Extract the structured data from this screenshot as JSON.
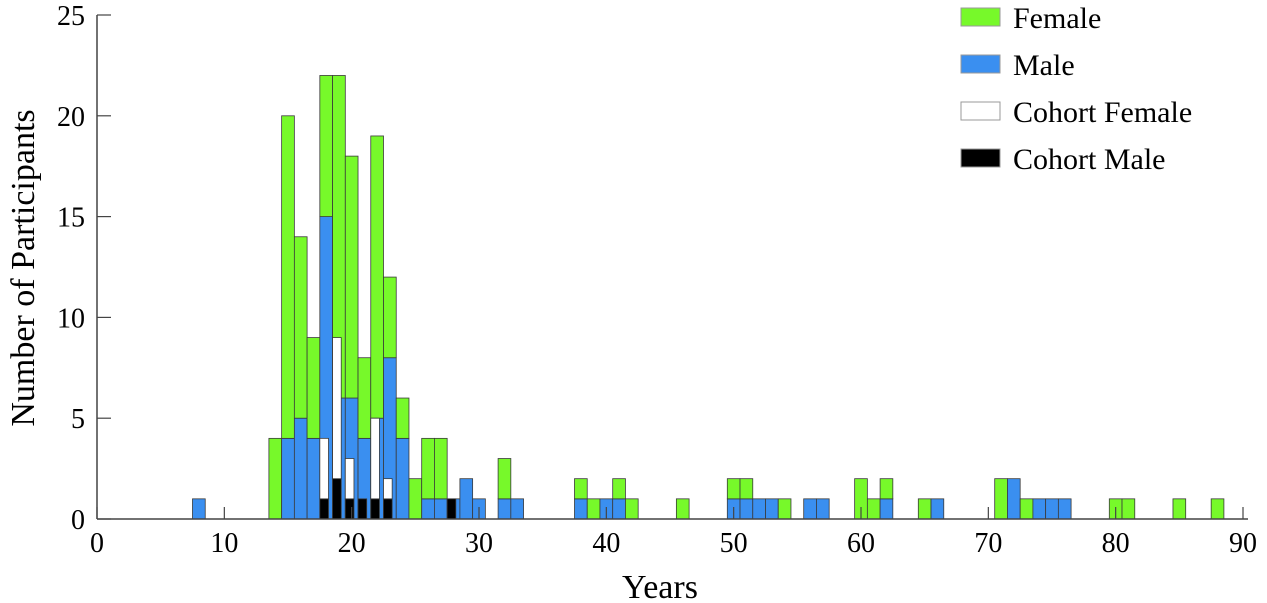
{
  "chart_data": {
    "type": "bar",
    "stacked": true,
    "title": "",
    "xlabel": "Years",
    "ylabel": "Number of Participants",
    "xlim": [
      0,
      90
    ],
    "ylim": [
      0,
      25
    ],
    "xticks": [
      0,
      10,
      20,
      30,
      40,
      50,
      60,
      70,
      80,
      90
    ],
    "yticks": [
      0,
      5,
      10,
      15,
      20,
      25
    ],
    "grid": false,
    "legend_position": "top-right",
    "x": [
      8,
      14,
      15,
      16,
      17,
      18,
      19,
      20,
      21,
      22,
      23,
      24,
      25,
      26,
      27,
      28,
      29,
      30,
      32,
      33,
      38,
      39,
      40,
      41,
      42,
      46,
      50,
      51,
      52,
      53,
      54,
      56,
      57,
      60,
      61,
      62,
      65,
      66,
      71,
      72,
      73,
      74,
      75,
      76,
      80,
      81,
      85,
      88
    ],
    "series": [
      {
        "name": "Male",
        "color": "#3a8ff0",
        "layer": "main",
        "values": [
          1,
          0,
          4,
          5,
          4,
          15,
          6,
          6,
          4,
          5,
          8,
          4,
          0,
          1,
          1,
          1,
          2,
          1,
          1,
          1,
          1,
          0,
          1,
          1,
          0,
          0,
          1,
          1,
          1,
          1,
          0,
          1,
          1,
          0,
          0,
          1,
          0,
          1,
          0,
          2,
          0,
          1,
          1,
          1,
          0,
          0,
          0,
          0
        ]
      },
      {
        "name": "Female",
        "color": "#77f92a",
        "layer": "main",
        "values": [
          0,
          4,
          16,
          9,
          5,
          7,
          16,
          12,
          4,
          14,
          4,
          2,
          2,
          3,
          3,
          0,
          0,
          0,
          2,
          0,
          1,
          1,
          0,
          1,
          1,
          1,
          1,
          1,
          0,
          0,
          1,
          0,
          0,
          2,
          1,
          1,
          1,
          0,
          2,
          0,
          1,
          0,
          0,
          0,
          1,
          1,
          1,
          1
        ]
      },
      {
        "name": "Cohort Male",
        "color": "#000000",
        "layer": "cohort",
        "values": [
          0,
          0,
          0,
          0,
          0,
          1,
          2,
          1,
          1,
          1,
          1,
          0,
          0,
          0,
          0,
          1,
          0,
          0,
          0,
          0,
          0,
          0,
          0,
          0,
          0,
          0,
          0,
          0,
          0,
          0,
          0,
          0,
          0,
          0,
          0,
          0,
          0,
          0,
          0,
          0,
          0,
          0,
          0,
          0,
          0,
          0,
          0,
          0
        ]
      },
      {
        "name": "Cohort Female",
        "color": "#ffffff",
        "layer": "cohort",
        "values": [
          0,
          0,
          0,
          0,
          0,
          3,
          7,
          2,
          0,
          4,
          1,
          0,
          0,
          0,
          0,
          0,
          0,
          0,
          0,
          0,
          0,
          0,
          0,
          0,
          0,
          0,
          0,
          0,
          0,
          0,
          0,
          0,
          0,
          0,
          0,
          0,
          0,
          0,
          0,
          0,
          0,
          0,
          0,
          0,
          0,
          0,
          0,
          0
        ]
      }
    ],
    "legend": [
      {
        "label": "Female",
        "color": "#77f92a"
      },
      {
        "label": "Male",
        "color": "#3a8ff0"
      },
      {
        "label": "Cohort Female",
        "color": "#ffffff"
      },
      {
        "label": "Cohort Male",
        "color": "#000000"
      }
    ]
  }
}
